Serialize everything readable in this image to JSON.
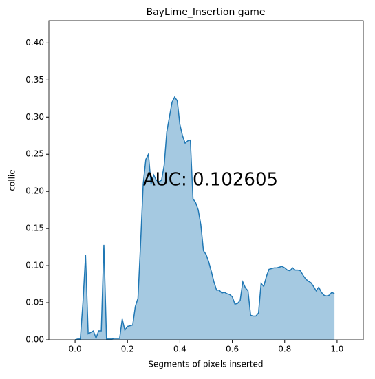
{
  "chart_data": {
    "type": "area",
    "title": "BayLime_Insertion game",
    "xlabel": "Segments of pixels inserted",
    "ylabel": "collie",
    "annotation": "AUC: 0.102605",
    "color": "#1f77b4",
    "x": [
      0.0,
      0.01,
      0.02,
      0.03,
      0.04,
      0.05,
      0.06,
      0.07,
      0.08,
      0.09,
      0.1,
      0.11,
      0.12,
      0.13,
      0.14,
      0.15,
      0.16,
      0.17,
      0.18,
      0.19,
      0.2,
      0.21,
      0.22,
      0.23,
      0.24,
      0.25,
      0.26,
      0.27,
      0.28,
      0.29,
      0.3,
      0.31,
      0.32,
      0.33,
      0.34,
      0.35,
      0.36,
      0.37,
      0.38,
      0.39,
      0.4,
      0.41,
      0.42,
      0.43,
      0.44,
      0.45,
      0.46,
      0.47,
      0.48,
      0.49,
      0.5,
      0.51,
      0.52,
      0.53,
      0.54,
      0.55,
      0.56,
      0.57,
      0.58,
      0.59,
      0.6,
      0.61,
      0.62,
      0.63,
      0.64,
      0.65,
      0.66,
      0.67,
      0.68,
      0.69,
      0.7,
      0.71,
      0.72,
      0.73,
      0.74,
      0.75,
      0.76,
      0.77,
      0.78,
      0.79,
      0.8,
      0.81,
      0.82,
      0.83,
      0.84,
      0.85,
      0.86,
      0.87,
      0.88,
      0.89,
      0.9,
      0.91,
      0.92,
      0.93,
      0.94,
      0.95,
      0.96,
      0.97,
      0.98,
      0.99
    ],
    "values": [
      0,
      0.001,
      0.001,
      0.05,
      0.114,
      0.008,
      0.01,
      0.012,
      0.002,
      0.012,
      0.012,
      0.128,
      0.001,
      0.001,
      0.001,
      0.002,
      0.002,
      0.002,
      0.028,
      0.013,
      0.018,
      0.019,
      0.02,
      0.045,
      0.056,
      0.13,
      0.21,
      0.243,
      0.25,
      0.21,
      0.222,
      0.215,
      0.213,
      0.215,
      0.235,
      0.28,
      0.3,
      0.32,
      0.327,
      0.322,
      0.29,
      0.275,
      0.265,
      0.268,
      0.269,
      0.19,
      0.185,
      0.175,
      0.155,
      0.12,
      0.115,
      0.105,
      0.092,
      0.078,
      0.067,
      0.067,
      0.063,
      0.064,
      0.062,
      0.061,
      0.058,
      0.048,
      0.049,
      0.053,
      0.078,
      0.07,
      0.066,
      0.033,
      0.032,
      0.032,
      0.036,
      0.076,
      0.072,
      0.085,
      0.095,
      0.096,
      0.097,
      0.097,
      0.098,
      0.099,
      0.097,
      0.094,
      0.093,
      0.097,
      0.094,
      0.094,
      0.093,
      0.087,
      0.082,
      0.079,
      0.077,
      0.072,
      0.066,
      0.071,
      0.064,
      0.06,
      0.059,
      0.06,
      0.064,
      0.062
    ],
    "xlim": [
      -0.1,
      1.1
    ],
    "ylim": [
      0,
      0.43
    ],
    "xticks": [
      {
        "value": 0,
        "label": "0.0"
      },
      0.2,
      0.4,
      0.6,
      0.8,
      {
        "value": 1,
        "label": "1.0"
      }
    ],
    "yticks": [
      {
        "value": 0,
        "label": "0.00"
      },
      0.05,
      {
        "value": 0.1,
        "label": "0.10"
      },
      0.15,
      {
        "value": 0.2,
        "label": "0.20"
      },
      0.25,
      {
        "value": 0.3,
        "label": "0.30"
      },
      0.35,
      {
        "value": 0.4,
        "label": "0.40"
      }
    ]
  }
}
